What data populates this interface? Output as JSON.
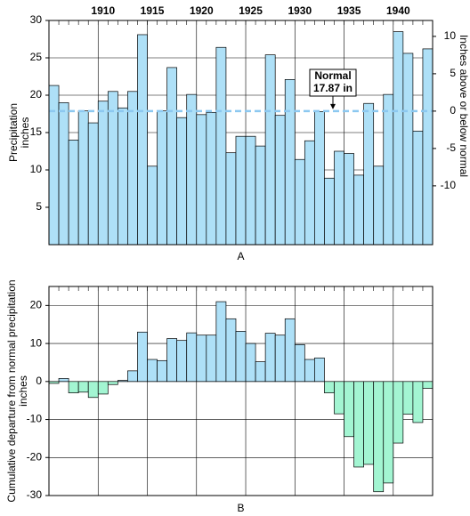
{
  "chart_data": [
    {
      "type": "bar",
      "categories": [
        null,
        null,
        null,
        null,
        null,
        "1910",
        null,
        null,
        null,
        null,
        "1915",
        null,
        null,
        null,
        null,
        "1920",
        null,
        null,
        null,
        null,
        "1925",
        null,
        null,
        null,
        null,
        "1930",
        null,
        null,
        null,
        null,
        "1935",
        null,
        null,
        null,
        null,
        "1940",
        null,
        null,
        null
      ],
      "values": [
        21.3,
        19,
        14,
        17.9,
        16.3,
        19.2,
        20.5,
        18.3,
        20.5,
        28.1,
        10.5,
        17.9,
        23.7,
        17,
        20.1,
        17.4,
        17.7,
        26.4,
        12.3,
        14.5,
        14.5,
        13.2,
        25.4,
        17.3,
        22.1,
        11.4,
        13.9,
        17.8,
        8.9,
        12.5,
        12.2,
        9.3,
        18.9,
        10.5,
        20.1,
        28.5,
        25.6,
        15.2,
        26.2
      ],
      "color": "#aee0f7",
      "ylim": [
        0,
        30
      ],
      "yticks": [
        5,
        10,
        15,
        20,
        25,
        30
      ],
      "y2lim": [
        -17.87,
        12.13
      ],
      "y2ticks": [
        -10,
        -5,
        0,
        5,
        10
      ],
      "ylabel": "Precipitation inches",
      "y2label": "Inches above or below normal",
      "normal": {
        "title": "Normal",
        "value": 17.87,
        "label": "17.87 in"
      },
      "caption": "A",
      "grid": true
    },
    {
      "type": "bar",
      "values": [
        -0.5,
        0.8,
        -3,
        -2.8,
        -4.2,
        -3.3,
        -0.8,
        0.3,
        2.8,
        13,
        5.8,
        5.5,
        11.3,
        10.8,
        12.8,
        12.2,
        12.2,
        21,
        16.5,
        13.2,
        10,
        5.2,
        12.7,
        12.2,
        16.5,
        9.7,
        5.8,
        6.2,
        -3,
        -8.5,
        -14.5,
        -22.5,
        -21.8,
        -29,
        -26.7,
        -16.2,
        -8.6,
        -10.8,
        -1.8
      ],
      "color": "#aee0f7",
      "negative_color": "#a3f5d2",
      "ylim": [
        -30,
        25
      ],
      "yticks": [
        -30,
        -20,
        -10,
        0,
        10,
        20
      ],
      "ylabel": "Cumulative departure from normal precipitation inches",
      "caption": "B",
      "grid": true
    }
  ]
}
